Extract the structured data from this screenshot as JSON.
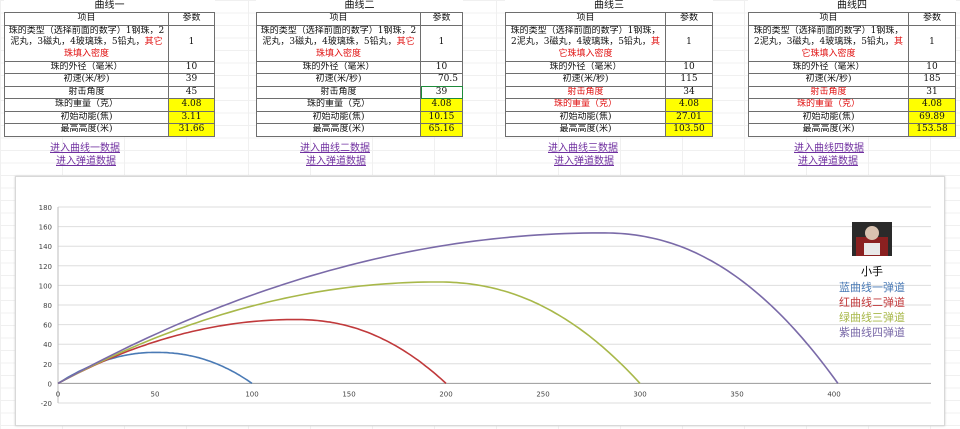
{
  "tables": [
    {
      "title": "曲线一",
      "col_item": "项目",
      "col_param": "参数",
      "type_text_a": "珠的类型（选择前面的数字）1钢珠，2泥丸，3磁丸，4玻璃珠，5铅丸，",
      "type_text_b": "其它珠填入密度",
      "type_value": "1",
      "diameter_label": "珠的外径（毫米）",
      "diameter_value": "10",
      "speed_label": "初速(米/秒)",
      "speed_value": "39",
      "angle_label": "射击角度",
      "angle_value": "45",
      "weight_label": "珠的重量（克）",
      "weight_value": "4.08",
      "energy_label": "初始动能(焦)",
      "energy_value": "3.11",
      "height_label": "最高高度(米)",
      "height_value": "31.66",
      "link_curve": "进入曲线一数据",
      "link_track": "进入弹道数据"
    },
    {
      "title": "曲线二",
      "col_item": "项目",
      "col_param": "参数",
      "type_text_a": "珠的类型（选择前面的数字）1钢珠，2泥丸，3磁丸，4玻璃珠，5铅丸，",
      "type_text_b": "其它珠填入密度",
      "type_value": "1",
      "diameter_label": "珠的外径（毫米）",
      "diameter_value": "10",
      "speed_label": "初速(米/秒)",
      "speed_value": "70.5",
      "angle_label": "射击角度",
      "angle_value": "39",
      "weight_label": "珠的重量（克）",
      "weight_value": "4.08",
      "energy_label": "初始动能(焦)",
      "energy_value": "10.15",
      "height_label": "最高高度(米)",
      "height_value": "65.16",
      "link_curve": "进入曲线二数据",
      "link_track": "进入弹道数据"
    },
    {
      "title": "曲线三",
      "col_item": "项目",
      "col_param": "参数",
      "type_text_a": "珠的类型（选择前面的数字）1钢珠，2泥丸，3磁丸，4玻璃珠，5铅丸，",
      "type_text_b": "其它珠填入密度",
      "type_value": "1",
      "diameter_label": "珠的外径（毫米）",
      "diameter_value": "10",
      "speed_label": "初速(米/秒)",
      "speed_value": "115",
      "angle_label": "射击角度",
      "angle_value": "34",
      "weight_label": "珠的重量（克）",
      "weight_value": "4.08",
      "energy_label": "初始动能(焦)",
      "energy_value": "27.01",
      "height_label": "最高高度(米)",
      "height_value": "103.50",
      "link_curve": "进入曲线三数据",
      "link_track": "进入弹道数据"
    },
    {
      "title": "曲线四",
      "col_item": "项目",
      "col_param": "参数",
      "type_text_a": "珠的类型（选择前面的数字）1钢珠，2泥丸，3磁丸，4玻璃珠，5铅丸，",
      "type_text_b": "其它珠填入密度",
      "type_value": "1",
      "diameter_label": "珠的外径（毫米）",
      "diameter_value": "10",
      "speed_label": "初速(米/秒)",
      "speed_value": "185",
      "angle_label": "射击角度",
      "angle_value": "31",
      "weight_label": "珠的重量（克）",
      "weight_value": "4.08",
      "energy_label": "初始动能(焦)",
      "energy_value": "69.89",
      "height_label": "最高高度(米)",
      "height_value": "153.58",
      "link_curve": "进入曲线四数据",
      "link_track": "进入弹道数据"
    }
  ],
  "chart_data": {
    "type": "line",
    "x_ticks": [
      "0",
      "50",
      "100",
      "150",
      "200",
      "250",
      "300",
      "350",
      "400"
    ],
    "y_ticks": [
      "-20",
      "0",
      "20",
      "40",
      "60",
      "80",
      "100",
      "120",
      "140",
      "160",
      "180"
    ],
    "xlim": [
      0,
      450
    ],
    "ylim": [
      -20,
      180
    ],
    "grid": "horizontal",
    "legend_position": "right",
    "series": [
      {
        "name": "蓝曲线一弹道",
        "color": "#4a7ab5",
        "range": 100,
        "peak_x": 50,
        "peak_y": 31.66
      },
      {
        "name": "红曲线二弹道",
        "color": "#c0393b",
        "range": 200,
        "peak_x": 122,
        "peak_y": 65.16
      },
      {
        "name": "绿曲线三弹道",
        "color": "#a8b84a",
        "range": 300,
        "peak_x": 195,
        "peak_y": 103.5
      },
      {
        "name": "紫曲线四弹道",
        "color": "#7a6aa8",
        "range": 402,
        "peak_x": 280,
        "peak_y": 153.58
      }
    ],
    "legend_title": "小手"
  }
}
